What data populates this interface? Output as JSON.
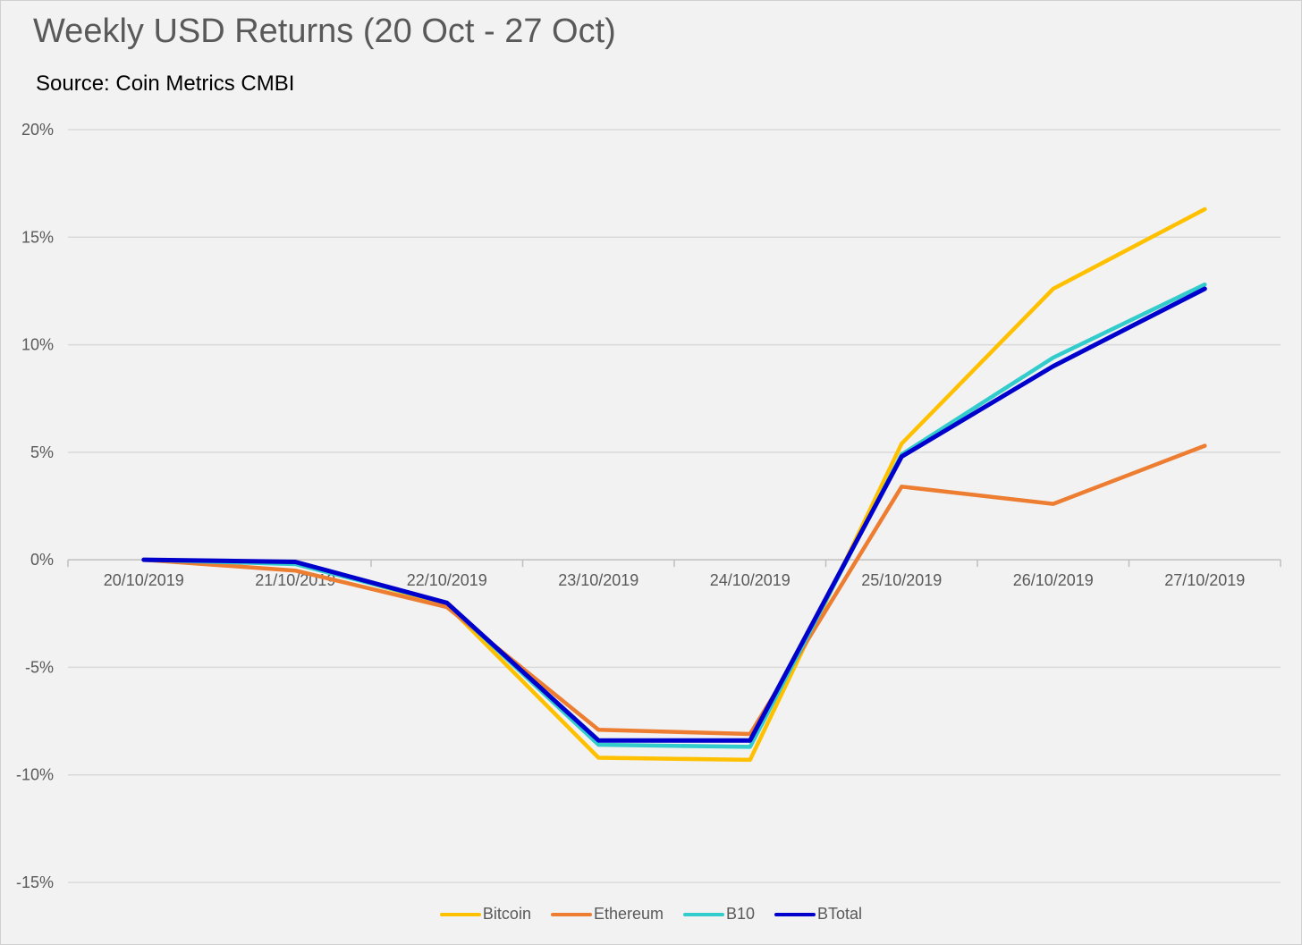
{
  "chart_data": {
    "type": "line",
    "title": "Weekly USD Returns (20 Oct - 27 Oct)",
    "subtitle": "Source: Coin Metrics CMBI",
    "categories": [
      "20/10/2019",
      "21/10/2019",
      "22/10/2019",
      "23/10/2019",
      "24/10/2019",
      "25/10/2019",
      "26/10/2019",
      "27/10/2019"
    ],
    "ylim": [
      -15,
      20
    ],
    "yticks": [
      20,
      15,
      10,
      5,
      0,
      -5,
      -10,
      -15
    ],
    "ytick_labels": [
      "20%",
      "15%",
      "10%",
      "5%",
      "0%",
      "-5%",
      "-10%",
      "-15%"
    ],
    "grid": true,
    "legend_position": "bottom",
    "series": [
      {
        "name": "Bitcoin",
        "color": "#FFC000",
        "values": [
          0,
          -0.1,
          -2.1,
          -9.2,
          -9.3,
          5.4,
          12.6,
          16.3
        ]
      },
      {
        "name": "Ethereum",
        "color": "#ED7D31",
        "values": [
          0,
          -0.5,
          -2.2,
          -7.9,
          -8.1,
          3.4,
          2.6,
          5.3
        ]
      },
      {
        "name": "B10",
        "color": "#33CCCC",
        "values": [
          0,
          -0.2,
          -2.0,
          -8.6,
          -8.7,
          4.9,
          9.4,
          12.8
        ]
      },
      {
        "name": "BTotal",
        "color": "#0000CC",
        "values": [
          0,
          -0.1,
          -2.0,
          -8.4,
          -8.4,
          4.8,
          9.0,
          12.6
        ]
      }
    ]
  }
}
